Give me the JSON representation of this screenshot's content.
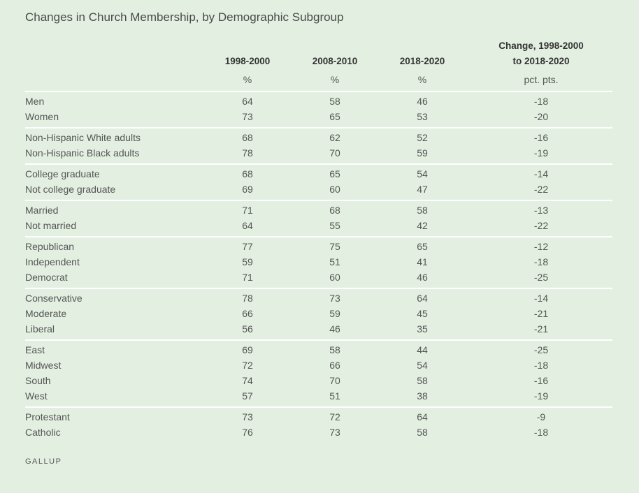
{
  "title": "Changes in Church Membership, by Demographic Subgroup",
  "footer": "GALLUP",
  "colors": {
    "background": "#e3f0e1",
    "divider": "#ffffff",
    "text": "#555555",
    "header": "#333333"
  },
  "chart_data": {
    "type": "table",
    "title": "Changes in Church Membership, by Demographic Subgroup",
    "columns": [
      "1998-2000",
      "2008-2010",
      "2018-2020"
    ],
    "change_header": [
      "Change, 1998-2000",
      "to 2018-2020"
    ],
    "units": [
      "%",
      "%",
      "%",
      "pct. pts."
    ],
    "groups": [
      [
        [
          "Men",
          "64",
          "58",
          "46",
          "-18"
        ],
        [
          "Women",
          "73",
          "65",
          "53",
          "-20"
        ]
      ],
      [
        [
          "Non-Hispanic White adults",
          "68",
          "62",
          "52",
          "-16"
        ],
        [
          "Non-Hispanic Black adults",
          "78",
          "70",
          "59",
          "-19"
        ]
      ],
      [
        [
          "College graduate",
          "68",
          "65",
          "54",
          "-14"
        ],
        [
          "Not college graduate",
          "69",
          "60",
          "47",
          "-22"
        ]
      ],
      [
        [
          "Married",
          "71",
          "68",
          "58",
          "-13"
        ],
        [
          "Not married",
          "64",
          "55",
          "42",
          "-22"
        ]
      ],
      [
        [
          "Republican",
          "77",
          "75",
          "65",
          "-12"
        ],
        [
          "Independent",
          "59",
          "51",
          "41",
          "-18"
        ],
        [
          "Democrat",
          "71",
          "60",
          "46",
          "-25"
        ]
      ],
      [
        [
          "Conservative",
          "78",
          "73",
          "64",
          "-14"
        ],
        [
          "Moderate",
          "66",
          "59",
          "45",
          "-21"
        ],
        [
          "Liberal",
          "56",
          "46",
          "35",
          "-21"
        ]
      ],
      [
        [
          "East",
          "69",
          "58",
          "44",
          "-25"
        ],
        [
          "Midwest",
          "72",
          "66",
          "54",
          "-18"
        ],
        [
          "South",
          "74",
          "70",
          "58",
          "-16"
        ],
        [
          "West",
          "57",
          "51",
          "38",
          "-19"
        ]
      ],
      [
        [
          "Protestant",
          "73",
          "72",
          "64",
          "-9"
        ],
        [
          "Catholic",
          "76",
          "73",
          "58",
          "-18"
        ]
      ]
    ]
  }
}
